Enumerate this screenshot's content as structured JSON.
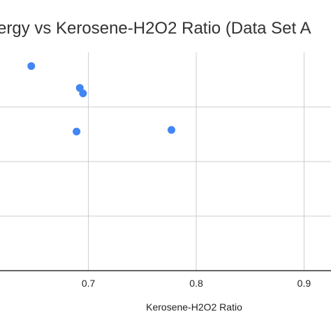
{
  "chart_data": {
    "type": "scatter",
    "title": "ergy vs Kerosene-H2O2 Ratio (Data Set A",
    "xlabel": "Kerosene-H2O2 Ratio",
    "ylabel": "",
    "x_ticks": [
      0.7,
      0.8,
      0.9
    ],
    "x_tick_labels": [
      "0.7",
      "0.8",
      "0.9"
    ],
    "xlim": [
      0.618,
      0.925
    ],
    "ylim": [
      0,
      4
    ],
    "grid": true,
    "legend": "none",
    "series": [
      {
        "color": "#4285f4",
        "points": [
          {
            "x": 0.647,
            "y": 3.75
          },
          {
            "x": 0.692,
            "y": 3.35
          },
          {
            "x": 0.695,
            "y": 3.25
          },
          {
            "x": 0.689,
            "y": 2.55
          },
          {
            "x": 0.777,
            "y": 2.58
          }
        ]
      }
    ]
  },
  "colors": {
    "grid": "#cccccc",
    "axis": "#333333",
    "title": "#333333",
    "text": "#222222"
  }
}
